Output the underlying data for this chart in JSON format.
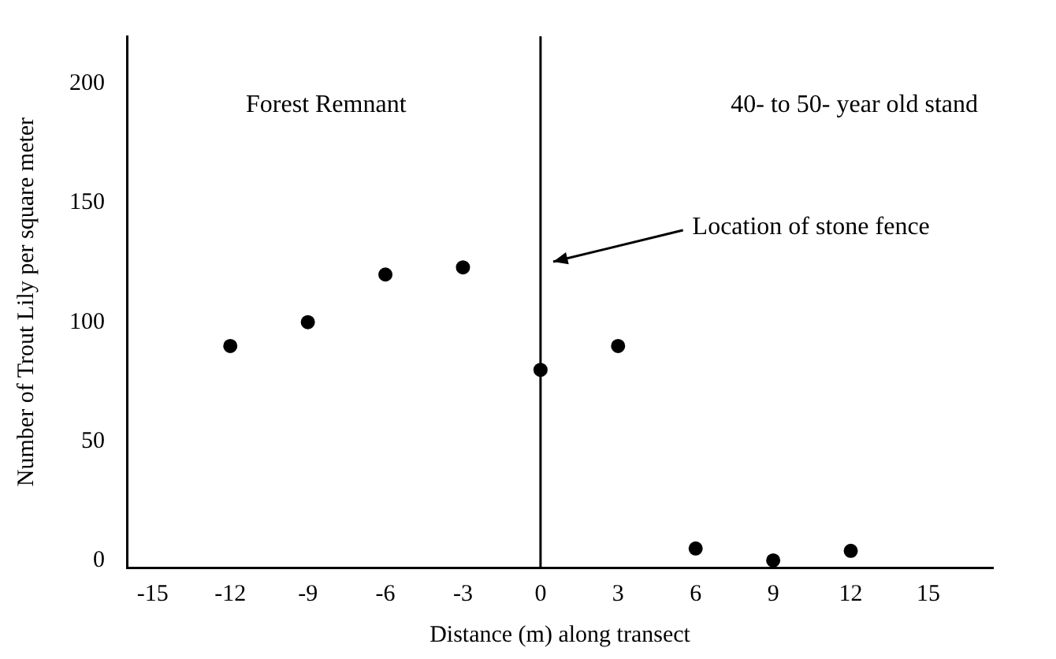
{
  "chart_data": {
    "type": "scatter",
    "xlabel": "Distance (m) along transect",
    "ylabel": "Number of Trout Lily per square meter",
    "x": [
      -12,
      -9,
      -6,
      -3,
      0,
      3,
      6,
      9,
      12
    ],
    "series": [
      {
        "color": "#000000",
        "values": [
          90,
          100,
          120,
          123,
          80,
          90,
          5,
          0,
          4
        ]
      }
    ],
    "xlim": [
      -16,
      17.5
    ],
    "xticks": [
      -15,
      -12,
      -9,
      -6,
      -3,
      0,
      3,
      6,
      9,
      12,
      15
    ],
    "ylim": [
      -3,
      220
    ],
    "yticks": [
      0,
      50,
      100,
      150,
      200
    ],
    "grid": false,
    "legend": false,
    "marker": "circle",
    "ref_lines": [
      {
        "axis": "x",
        "value": 0,
        "color": "#000000"
      }
    ],
    "annotations": [
      "Forest Remnant",
      "40- to 50- year old stand",
      "Location of stone fence"
    ]
  }
}
